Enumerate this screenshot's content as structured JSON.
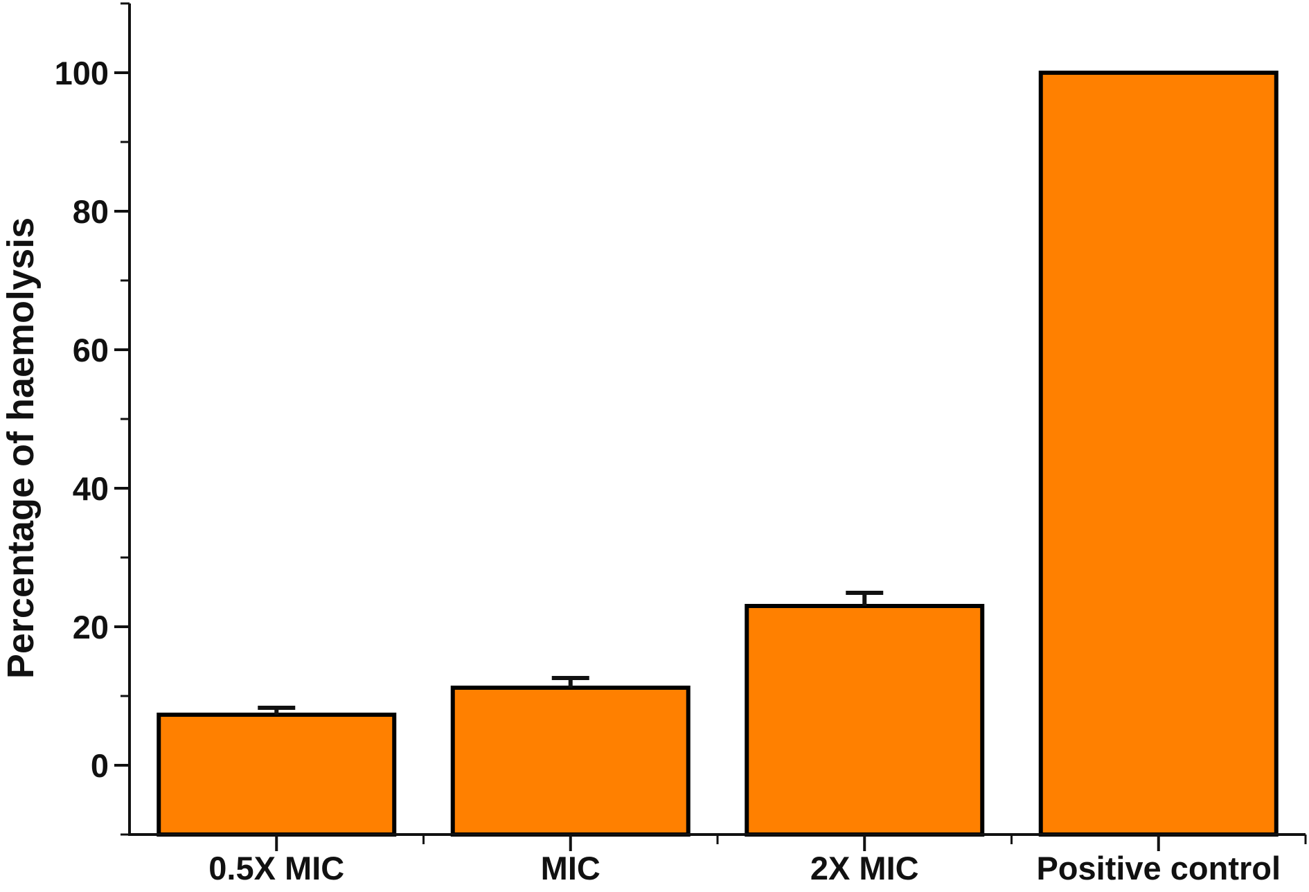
{
  "chart_data": {
    "type": "bar",
    "title": "",
    "xlabel": "",
    "ylabel": "Percentage of haemolysis",
    "categories": [
      "0.5X MIC",
      "MIC",
      "2X MIC",
      "Positive control"
    ],
    "series": [
      {
        "values": [
          7.3,
          11.2,
          23.0,
          100.0
        ],
        "error": [
          1.0,
          1.4,
          1.9,
          0
        ]
      }
    ],
    "ylim": [
      -10,
      110
    ],
    "yticks": [
      0,
      20,
      40,
      60,
      80,
      100
    ],
    "grid": false,
    "legend": "none",
    "bar_color": "#FF8000",
    "edge_color": "#000000"
  }
}
